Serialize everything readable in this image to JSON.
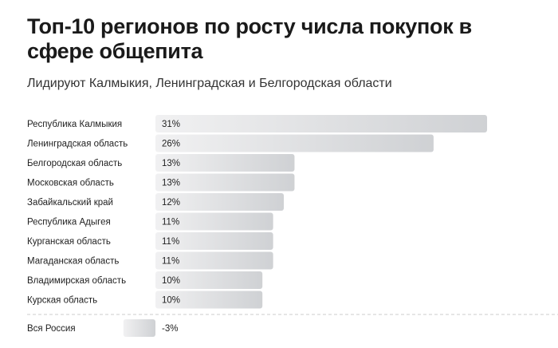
{
  "chart_data": {
    "type": "bar",
    "orientation": "horizontal",
    "title": "Топ-10 регионов по росту числа покупок в сфере общепита",
    "subtitle": "Лидируют Калмыкия, Ленинградская и Белгородская области",
    "categories": [
      "Республика Калмыкия",
      "Ленинградская область",
      "Белгородская область",
      "Московская область",
      "Забайкальский край",
      "Республика Адыгея",
      "Курганская область",
      "Магаданская область",
      "Владимирская область",
      "Курская область"
    ],
    "values": [
      31,
      26,
      13,
      13,
      12,
      11,
      11,
      11,
      10,
      10
    ],
    "value_labels": [
      "31%",
      "26%",
      "13%",
      "13%",
      "12%",
      "11%",
      "11%",
      "11%",
      "10%",
      "10%"
    ],
    "total": {
      "category": "Вся Россия",
      "value": -3,
      "value_label": "-3%"
    },
    "unit": "%",
    "grid": false,
    "bar_color_start": "#f1f1f2",
    "bar_color_end": "#cfd1d4"
  }
}
